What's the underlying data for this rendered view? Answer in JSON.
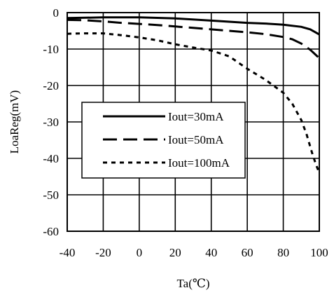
{
  "chart_data": {
    "type": "line",
    "title": "",
    "xlabel": "Ta(℃)",
    "ylabel": "LoaReg(mV)",
    "xlim": [
      -40,
      100
    ],
    "ylim": [
      -60,
      0
    ],
    "xticks": [
      -40,
      -20,
      0,
      20,
      40,
      60,
      80,
      100
    ],
    "yticks": [
      0,
      -10,
      -20,
      -30,
      -40,
      -50,
      -60
    ],
    "grid": true,
    "legend_position": "center-left",
    "series": [
      {
        "name": "Iout=30mA",
        "style": "solid",
        "color": "#000000",
        "x": [
          -40,
          -20,
          0,
          20,
          40,
          60,
          70,
          80,
          90,
          95,
          100
        ],
        "y": [
          -1.5,
          -1.3,
          -1.3,
          -1.6,
          -2.2,
          -2.8,
          -3.0,
          -3.3,
          -3.9,
          -4.6,
          -6.0
        ]
      },
      {
        "name": "Iout=50mA",
        "style": "dashed",
        "color": "#000000",
        "x": [
          -40,
          -30,
          -20,
          -10,
          0,
          10,
          20,
          30,
          40,
          50,
          60,
          70,
          80,
          85,
          90,
          95,
          100
        ],
        "y": [
          -2.0,
          -2.1,
          -2.4,
          -2.8,
          -3.1,
          -3.4,
          -3.8,
          -4.2,
          -4.6,
          -5.0,
          -5.4,
          -5.9,
          -6.7,
          -7.3,
          -8.5,
          -10.2,
          -12.5
        ]
      },
      {
        "name": "Iout=100mA",
        "style": "dotted",
        "color": "#000000",
        "x": [
          -40,
          -30,
          -20,
          -10,
          0,
          10,
          20,
          30,
          40,
          50,
          60,
          70,
          80,
          85,
          90,
          93,
          96,
          98,
          100
        ],
        "y": [
          -5.8,
          -5.7,
          -5.7,
          -6.2,
          -6.8,
          -7.6,
          -8.7,
          -9.6,
          -10.4,
          -12.0,
          -15.4,
          -18.4,
          -22.0,
          -25.0,
          -29.5,
          -33.5,
          -38.5,
          -41.5,
          -44.0
        ]
      }
    ]
  }
}
